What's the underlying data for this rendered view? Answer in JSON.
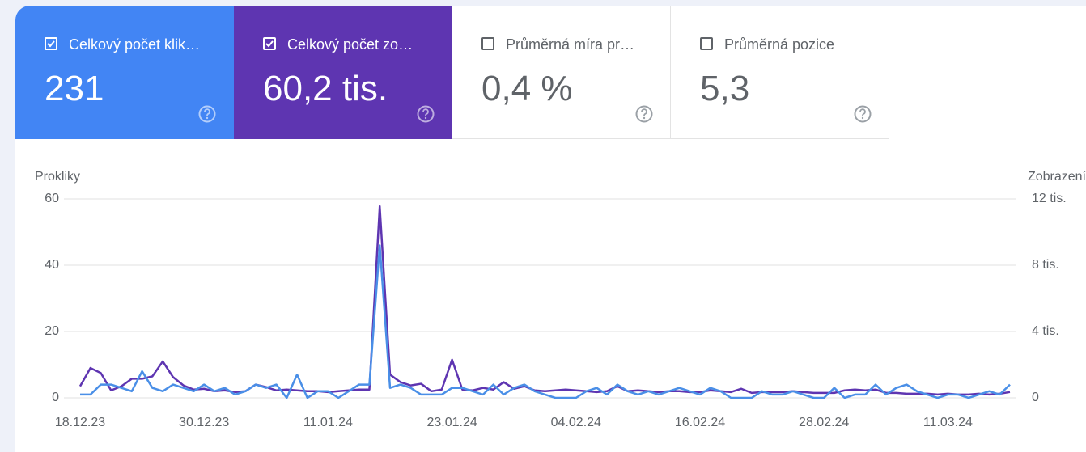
{
  "cards": [
    {
      "label": "Celkový počet klik…",
      "value": "231",
      "checked": true,
      "color": "#4285f4"
    },
    {
      "label": "Celkový počet zo…",
      "value": "60,2 tis.",
      "checked": true,
      "color": "#5e35b1"
    },
    {
      "label": "Průměrná míra pr…",
      "value": "0,4 %",
      "checked": false,
      "color": "#ffffff"
    },
    {
      "label": "Průměrná pozice",
      "value": "5,3",
      "checked": false,
      "color": "#ffffff"
    }
  ],
  "chart_data": {
    "type": "line",
    "y_label": "Prokliky",
    "y2_label": "Zobrazení",
    "x": [
      "18.12.23",
      "19.12.23",
      "20.12.23",
      "21.12.23",
      "22.12.23",
      "23.12.23",
      "24.12.23",
      "25.12.23",
      "26.12.23",
      "27.12.23",
      "28.12.23",
      "29.12.23",
      "30.12.23",
      "31.12.23",
      "01.01.24",
      "02.01.24",
      "03.01.24",
      "04.01.24",
      "05.01.24",
      "06.01.24",
      "07.01.24",
      "08.01.24",
      "09.01.24",
      "10.01.24",
      "11.01.24",
      "12.01.24",
      "13.01.24",
      "14.01.24",
      "15.01.24",
      "16.01.24",
      "17.01.24",
      "18.01.24",
      "19.01.24",
      "20.01.24",
      "21.01.24",
      "22.01.24",
      "23.01.24",
      "24.01.24",
      "25.01.24",
      "26.01.24",
      "27.01.24",
      "28.01.24",
      "29.01.24",
      "30.01.24",
      "31.01.24",
      "01.02.24",
      "02.02.24",
      "03.02.24",
      "04.02.24",
      "05.02.24",
      "06.02.24",
      "07.02.24",
      "08.02.24",
      "09.02.24",
      "10.02.24",
      "11.02.24",
      "12.02.24",
      "13.02.24",
      "14.02.24",
      "15.02.24",
      "16.02.24",
      "17.02.24",
      "18.02.24",
      "19.02.24",
      "20.02.24",
      "21.02.24",
      "22.02.24",
      "23.02.24",
      "24.02.24",
      "25.02.24",
      "26.02.24",
      "27.02.24",
      "28.02.24",
      "29.02.24",
      "01.03.24",
      "02.03.24",
      "03.03.24",
      "04.03.24",
      "05.03.24",
      "06.03.24",
      "07.03.24",
      "08.03.24",
      "09.03.24",
      "10.03.24",
      "11.03.24",
      "12.03.24",
      "13.03.24",
      "14.03.24",
      "15.03.24",
      "16.03.24",
      "17.03.24"
    ],
    "xticks": [
      "18.12.23",
      "30.12.23",
      "11.01.24",
      "23.01.24",
      "04.02.24",
      "16.02.24",
      "28.02.24",
      "11.03.24"
    ],
    "series": [
      {
        "name": "Zobrazení",
        "color": "#5e35b1",
        "axis": "y2",
        "values": [
          700,
          1800,
          1500,
          450,
          700,
          1150,
          1150,
          1300,
          2200,
          1250,
          750,
          500,
          550,
          400,
          450,
          350,
          400,
          800,
          650,
          450,
          500,
          450,
          400,
          400,
          350,
          400,
          450,
          500,
          500,
          11560,
          1400,
          950,
          750,
          850,
          400,
          500,
          2300,
          500,
          450,
          600,
          500,
          950,
          550,
          700,
          450,
          400,
          450,
          500,
          450,
          400,
          350,
          400,
          700,
          400,
          450,
          400,
          350,
          400,
          400,
          350,
          350,
          450,
          400,
          350,
          550,
          300,
          350,
          350,
          350,
          400,
          350,
          300,
          300,
          300,
          450,
          500,
          450,
          500,
          300,
          300,
          250,
          250,
          250,
          200,
          250,
          200,
          200,
          250,
          200,
          250,
          350
        ]
      },
      {
        "name": "Prokliky",
        "color": "#4a8fe7",
        "values": [
          1,
          1,
          4,
          4,
          3,
          2,
          8,
          3,
          2,
          4,
          3,
          2,
          4,
          2,
          3,
          1,
          2,
          4,
          3,
          4,
          0,
          7,
          0,
          2,
          2,
          0,
          2,
          4,
          4,
          46,
          3,
          4,
          3,
          1,
          1,
          1,
          3,
          3,
          2,
          1,
          4,
          1,
          3,
          4,
          2,
          1,
          0,
          0,
          0,
          2,
          3,
          1,
          4,
          2,
          1,
          2,
          1,
          2,
          3,
          2,
          1,
          3,
          2,
          0,
          0,
          0,
          2,
          1,
          1,
          2,
          1,
          0,
          0,
          3,
          0,
          1,
          1,
          4,
          1,
          3,
          4,
          2,
          1,
          0,
          1,
          1,
          0,
          1,
          2,
          1,
          4
        ]
      }
    ],
    "ylim": [
      0,
      60
    ],
    "yticks": [
      0,
      20,
      40,
      60
    ],
    "y2lim": [
      0,
      12000
    ],
    "y2ticks": [
      0,
      {
        "value": 4000,
        "label": "4 tis."
      },
      {
        "value": 8000,
        "label": "8 tis."
      },
      {
        "value": 12000,
        "label": "12 tis."
      }
    ],
    "grid": true
  }
}
